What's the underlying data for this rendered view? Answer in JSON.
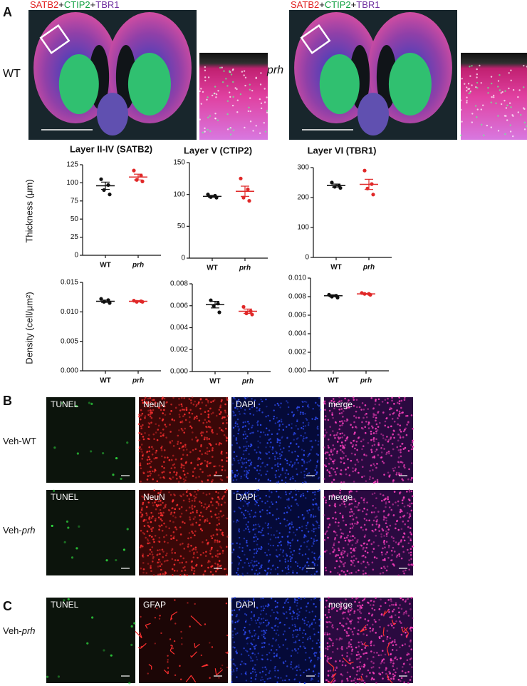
{
  "panel_a": {
    "letter": "A",
    "stain_label": [
      "SATB2",
      "+",
      "CTIP2",
      "+",
      "TBR1"
    ],
    "genotypes": [
      "WT",
      "prh"
    ],
    "row_labels": [
      "Thickness (μm)",
      "Density (cell/μm²)"
    ]
  },
  "chart_data": [
    {
      "type": "dot",
      "title": "Layer II-IV (SATB2)",
      "categories": [
        "WT",
        "prh"
      ],
      "colors": [
        "#111111",
        "#e02828"
      ],
      "points": [
        [
          105,
          97,
          90,
          84
        ],
        [
          117,
          110,
          104,
          102
        ]
      ],
      "means": [
        96,
        108
      ],
      "sems": [
        5,
        4
      ],
      "ylim": [
        0,
        125
      ],
      "yticks": [
        0,
        25,
        50,
        75,
        100,
        125
      ]
    },
    {
      "type": "dot",
      "title": "Layer V (CTIP2)",
      "categories": [
        "WT",
        "prh"
      ],
      "colors": [
        "#111111",
        "#e02828"
      ],
      "points": [
        [
          100,
          98,
          96,
          95
        ],
        [
          125,
          108,
          95,
          90
        ]
      ],
      "means": [
        97,
        105
      ],
      "sems": [
        1.5,
        8
      ],
      "ylim": [
        0,
        150
      ],
      "yticks": [
        0,
        50,
        100,
        150
      ]
    },
    {
      "type": "dot",
      "title": "Layer VI (TBR1)",
      "categories": [
        "WT",
        "prh"
      ],
      "colors": [
        "#111111",
        "#e02828"
      ],
      "points": [
        [
          250,
          240,
          236,
          232
        ],
        [
          290,
          245,
          230,
          210
        ]
      ],
      "means": [
        240,
        244
      ],
      "sems": [
        5,
        17
      ],
      "ylim": [
        0,
        300
      ],
      "yticks": [
        0,
        100,
        200,
        300
      ]
    },
    {
      "type": "dot",
      "categories": [
        "WT",
        "prh"
      ],
      "colors": [
        "#111111",
        "#e02828"
      ],
      "points": [
        [
          0.0122,
          0.012,
          0.0117,
          0.0115
        ],
        [
          0.0119,
          0.0118,
          0.0117,
          0.0117
        ]
      ],
      "means": [
        0.0118,
        0.0118
      ],
      "sems": [
        0.0002,
        0.0001
      ],
      "ylim": [
        0,
        0.015
      ],
      "yticks": [
        {
          "value": 0,
          "label": "0.000"
        },
        {
          "value": 0.005,
          "label": "0.005"
        },
        {
          "value": 0.01,
          "label": "0.010"
        },
        {
          "value": 0.015,
          "label": "0.015"
        }
      ]
    },
    {
      "type": "dot",
      "categories": [
        "WT",
        "prh"
      ],
      "colors": [
        "#111111",
        "#e02828"
      ],
      "points": [
        [
          0.0065,
          0.0062,
          0.006,
          0.0054
        ],
        [
          0.0059,
          0.0055,
          0.0053,
          0.0052
        ]
      ],
      "means": [
        0.0061,
        0.0055
      ],
      "sems": [
        0.0003,
        0.0002
      ],
      "ylim": [
        0,
        0.008
      ],
      "yticks": [
        {
          "value": 0,
          "label": "0.000"
        },
        {
          "value": 0.002,
          "label": "0.002"
        },
        {
          "value": 0.004,
          "label": "0.004"
        },
        {
          "value": 0.006,
          "label": "0.006"
        },
        {
          "value": 0.008,
          "label": "0.008"
        }
      ]
    },
    {
      "type": "dot",
      "categories": [
        "WT",
        "prh"
      ],
      "colors": [
        "#111111",
        "#e02828"
      ],
      "points": [
        [
          0.0082,
          0.0081,
          0.008,
          0.0079
        ],
        [
          0.0084,
          0.0083,
          0.0083,
          0.0082
        ]
      ],
      "means": [
        0.0081,
        0.0083
      ],
      "sems": [
        0.0001,
        5e-05
      ],
      "ylim": [
        0,
        0.01
      ],
      "yticks": [
        {
          "value": 0,
          "label": "0.000"
        },
        {
          "value": 0.002,
          "label": "0.002"
        },
        {
          "value": 0.004,
          "label": "0.004"
        },
        {
          "value": 0.006,
          "label": "0.006"
        },
        {
          "value": 0.008,
          "label": "0.008"
        },
        {
          "value": 0.01,
          "label": "0.010"
        }
      ]
    }
  ],
  "panel_b": {
    "letter": "B",
    "columns": [
      "TUNEL",
      "NeuN",
      "DAPI",
      "merge"
    ],
    "rows": [
      [
        "Veh-",
        "WT"
      ],
      [
        "Veh-",
        "prh"
      ]
    ]
  },
  "panel_c": {
    "letter": "C",
    "columns": [
      "TUNEL",
      "GFAP",
      "DAPI",
      "merge"
    ],
    "rows": [
      [
        "Veh-",
        "prh"
      ]
    ]
  }
}
